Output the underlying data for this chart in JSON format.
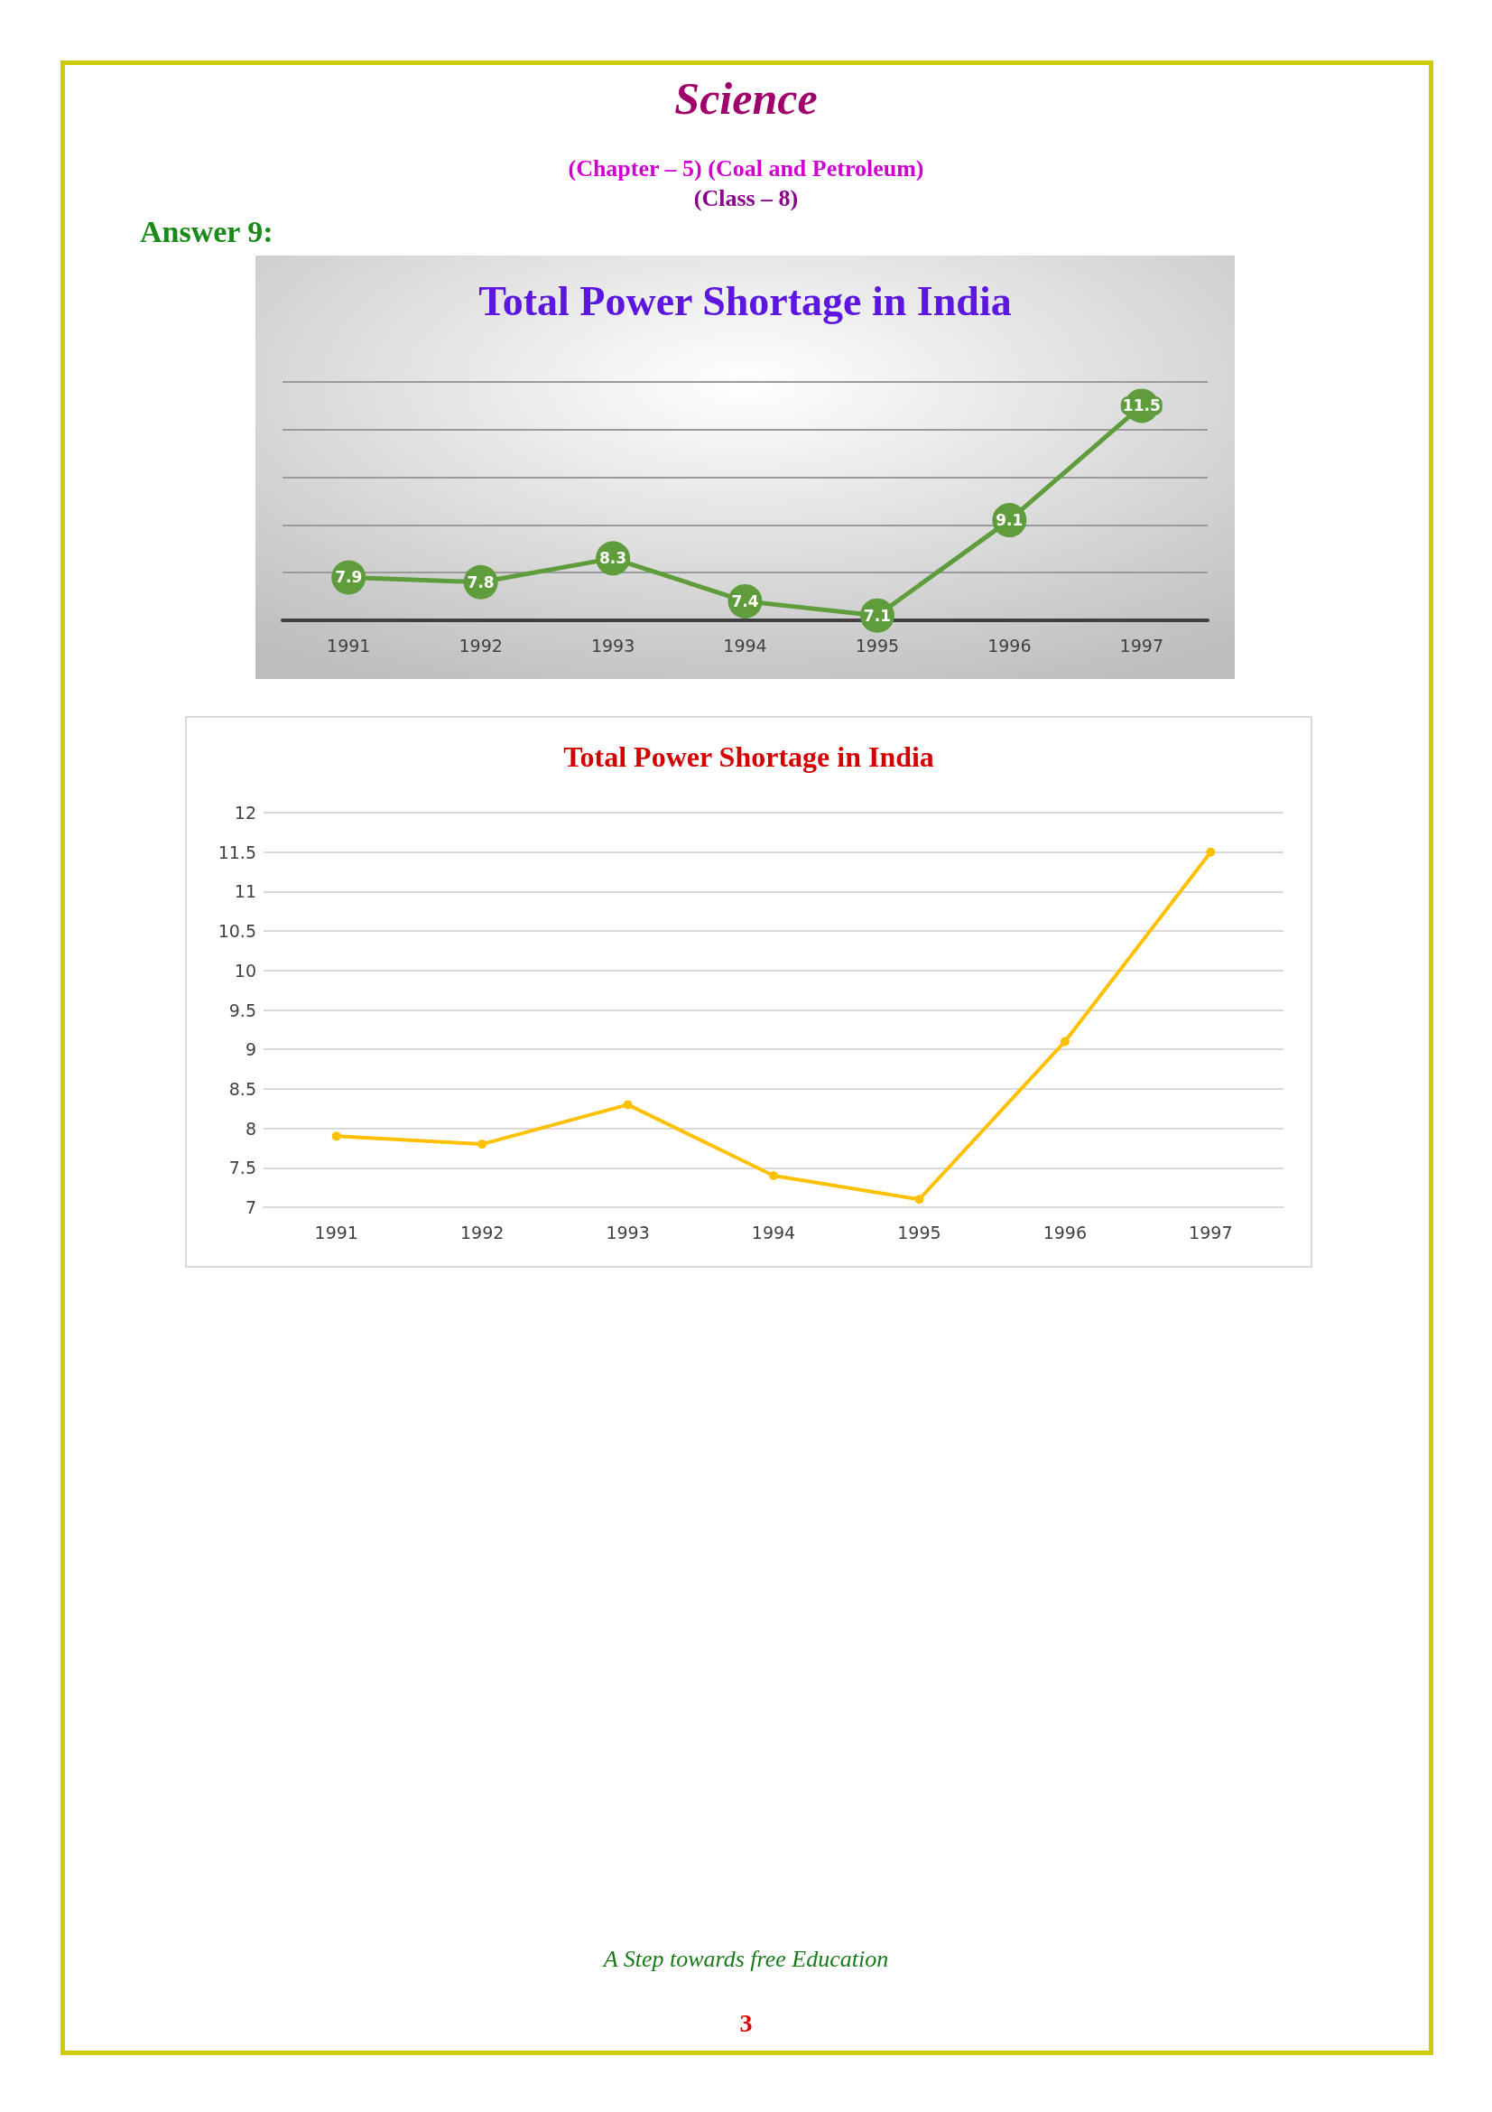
{
  "chart_data": [
    {
      "type": "line",
      "title": "Total Power Shortage in India",
      "annotations": [
        "Science",
        "(Chapter – 5) (Coal and Petroleum)",
        "(Class – 8)",
        "Answer 9:"
      ],
      "categories": [
        "1991",
        "1992",
        "1993",
        "1994",
        "1995",
        "1996",
        "1997"
      ],
      "values": [
        7.9,
        7.8,
        8.3,
        7.4,
        7.1,
        9.1,
        11.5
      ],
      "color": "#5e9c3c",
      "ylim": [
        7,
        12
      ],
      "yticks": [
        {
          "value": 7,
          "label": null
        },
        {
          "value": 8,
          "label": null
        },
        {
          "value": 9,
          "label": null
        },
        {
          "value": 10,
          "label": null
        },
        {
          "value": 11,
          "label": null
        },
        {
          "value": 12,
          "label": null
        }
      ],
      "tick_labels": "x",
      "grid": "y",
      "marker": "circle",
      "data_labels": true
    },
    {
      "type": "line",
      "title": "Total Power Shortage in India",
      "annotations": [
        "A Step towards free Education",
        "3"
      ],
      "categories": [
        "1991",
        "1992",
        "1993",
        "1994",
        "1995",
        "1996",
        "1997"
      ],
      "values": [
        7.9,
        7.8,
        8.3,
        7.4,
        7.1,
        9.1,
        11.5
      ],
      "color": "#ffc000",
      "ylim": [
        7,
        12
      ],
      "yticks": [
        7,
        7.5,
        8,
        8.5,
        9,
        9.5,
        10,
        10.5,
        11,
        11.5,
        12
      ],
      "grid": "y",
      "marker": "circle"
    }
  ]
}
